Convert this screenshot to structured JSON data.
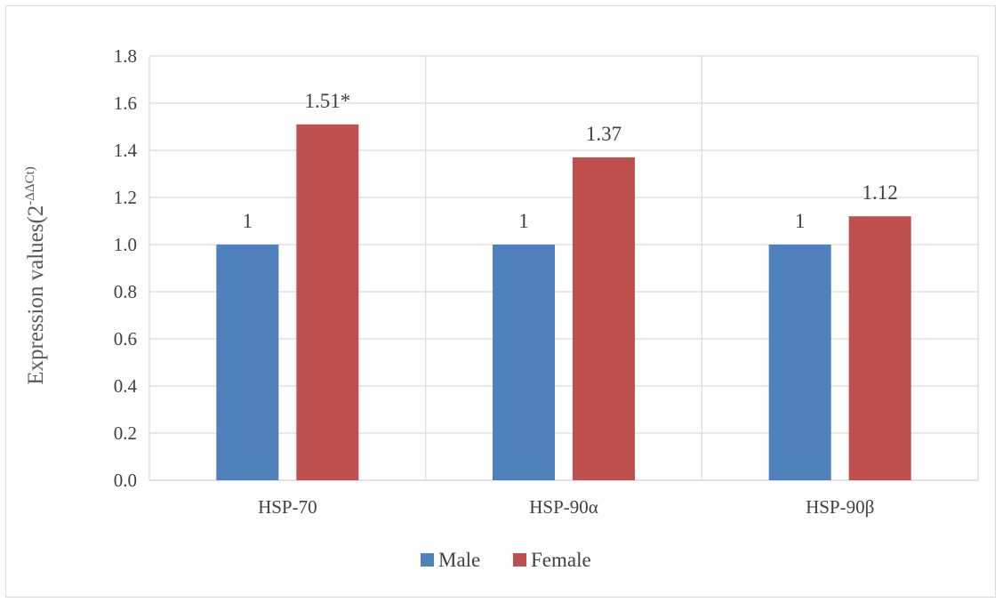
{
  "chart_data": {
    "type": "bar",
    "categories": [
      "HSP-70",
      "HSP-90α",
      "HSP-90β"
    ],
    "series": [
      {
        "name": "Male",
        "values": [
          1,
          1,
          1
        ],
        "color": "#4f81bd",
        "labels": [
          "1",
          "1",
          "1"
        ]
      },
      {
        "name": "Female",
        "values": [
          1.51,
          1.37,
          1.12
        ],
        "color": "#c0504d",
        "labels": [
          "1.51*",
          "1.37",
          "1.12"
        ]
      }
    ],
    "ylabel": "Expression values(2",
    "ylabel_superscript": "-ΔΔCt)",
    "ylim": [
      0,
      1.8
    ],
    "yticks": [
      "0.0",
      "0.2",
      "0.4",
      "0.6",
      "0.8",
      "1.0",
      "1.2",
      "1.4",
      "1.6",
      "1.8"
    ],
    "grid": true,
    "legend_position": "bottom",
    "gridline_color": "#d9d9d9"
  }
}
